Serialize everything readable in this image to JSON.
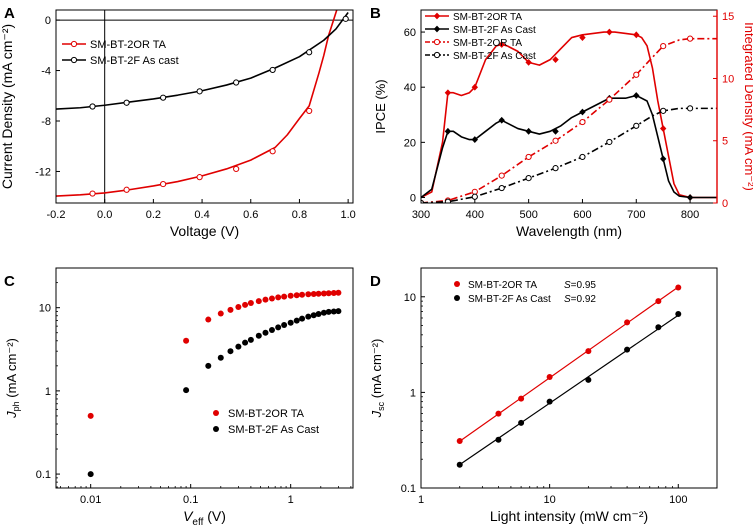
{
  "colors": {
    "red": "#e00000",
    "black": "#000000",
    "axis": "#000000"
  },
  "chart_data": [
    {
      "panel": "A",
      "type": "line",
      "title": "",
      "xlabel": "Voltage (V)",
      "ylabel": "Current Density (mA cm⁻²)",
      "xlim": [
        -0.2,
        1.02
      ],
      "ylim": [
        -14.5,
        0.8
      ],
      "xticks": [
        -0.2,
        0.0,
        0.2,
        0.4,
        0.6,
        0.8,
        1.0
      ],
      "xtick_labels": [
        "-0.2",
        "0.0",
        "0.2",
        "0.4",
        "0.6",
        "0.8",
        "1.0"
      ],
      "yticks": [
        0,
        -4,
        -8,
        -12
      ],
      "ytick_labels": [
        "0",
        "-4",
        "-8",
        "-12"
      ],
      "legend_position": "top-left",
      "series": [
        {
          "name": "SM-BT-2OR TA",
          "color": "red",
          "marker": "circle-open",
          "x": [
            -0.2,
            -0.1,
            0.0,
            0.1,
            0.2,
            0.3,
            0.4,
            0.5,
            0.6,
            0.7,
            0.75,
            0.8,
            0.84,
            0.88,
            0.9,
            0.92,
            0.94,
            0.96
          ],
          "y": [
            -13.95,
            -13.85,
            -13.7,
            -13.45,
            -13.15,
            -12.8,
            -12.35,
            -11.8,
            -11.1,
            -10.1,
            -9.1,
            -7.8,
            -6.8,
            -4.2,
            -2.8,
            -1.2,
            0.0,
            1.2
          ],
          "marker_x": [
            -0.05,
            0.09,
            0.24,
            0.39,
            0.54,
            0.69,
            0.84
          ],
          "marker_y": [
            -13.75,
            -13.45,
            -13.0,
            -12.45,
            -11.8,
            -10.4,
            -7.2
          ]
        },
        {
          "name": "SM-BT-2F As cast",
          "color": "black",
          "marker": "circle-open",
          "x": [
            -0.2,
            -0.1,
            0.0,
            0.1,
            0.2,
            0.3,
            0.4,
            0.5,
            0.6,
            0.7,
            0.8,
            0.9,
            0.95,
            1.0
          ],
          "y": [
            -7.05,
            -6.95,
            -6.75,
            -6.5,
            -6.25,
            -5.95,
            -5.6,
            -5.15,
            -4.6,
            -3.8,
            -2.9,
            -1.6,
            -0.7,
            0.6
          ],
          "marker_x": [
            -0.05,
            0.09,
            0.24,
            0.39,
            0.54,
            0.69,
            0.84,
            0.99
          ],
          "marker_y": [
            -6.85,
            -6.55,
            -6.15,
            -5.65,
            -4.95,
            -3.95,
            -2.55,
            0.1
          ]
        }
      ]
    },
    {
      "panel": "B",
      "type": "line",
      "title": "",
      "xlabel": "Wavelength (nm)",
      "ylabel": "IPCE (%)",
      "y2label": "Integrated Density (mA cm⁻²)",
      "xlim": [
        300,
        850
      ],
      "ylim": [
        -2,
        68
      ],
      "y2lim": [
        0,
        15.5
      ],
      "xticks": [
        300,
        400,
        500,
        600,
        700,
        800
      ],
      "xtick_labels": [
        "300",
        "400",
        "500",
        "600",
        "700",
        "800"
      ],
      "yticks": [
        0,
        20,
        40,
        60
      ],
      "ytick_labels": [
        "0",
        "20",
        "40",
        "60"
      ],
      "y2ticks": [
        0,
        5,
        10,
        15
      ],
      "y2tick_labels": [
        "0",
        "5",
        "10",
        "15"
      ],
      "legend_position": "top-left",
      "series": [
        {
          "name": "SM-BT-2OR TA",
          "color": "red",
          "style": "solid",
          "marker": "diamond-filled",
          "axis": "left",
          "x": [
            300,
            320,
            340,
            350,
            360,
            375,
            390,
            400,
            420,
            440,
            450,
            460,
            480,
            500,
            520,
            540,
            560,
            580,
            600,
            620,
            640,
            650,
            660,
            680,
            700,
            710,
            720,
            730,
            740,
            750,
            760,
            770,
            780,
            800,
            850
          ],
          "y": [
            0,
            2,
            20,
            38,
            38,
            37,
            38,
            40,
            50,
            55,
            55.5,
            55,
            53,
            49,
            48,
            50,
            54,
            58,
            59,
            59.5,
            60,
            60,
            60,
            59.5,
            59,
            58,
            55,
            47,
            35,
            25,
            15,
            5,
            1,
            0,
            0
          ],
          "marker_x": [
            350,
            400,
            450,
            500,
            550,
            600,
            650,
            700,
            750,
            800
          ],
          "marker_y": [
            38,
            40,
            55.5,
            49,
            50,
            58,
            60,
            59,
            25,
            0
          ]
        },
        {
          "name": "SM-BT-2F As Cast",
          "color": "black",
          "style": "solid",
          "marker": "diamond-filled",
          "axis": "left",
          "x": [
            300,
            320,
            340,
            350,
            360,
            375,
            390,
            400,
            420,
            440,
            450,
            460,
            480,
            500,
            520,
            540,
            560,
            580,
            600,
            620,
            640,
            650,
            660,
            680,
            700,
            720,
            730,
            740,
            750,
            760,
            770,
            780,
            800,
            850
          ],
          "y": [
            0,
            3,
            18,
            24,
            24,
            22,
            21,
            21,
            24,
            27,
            28,
            27,
            25,
            24,
            23,
            24,
            26,
            29,
            31,
            33,
            35,
            36,
            36,
            36,
            37,
            35,
            30,
            22,
            14,
            6,
            2,
            0.5,
            0,
            0
          ],
          "marker_x": [
            350,
            400,
            450,
            500,
            550,
            600,
            650,
            700,
            750,
            800
          ],
          "marker_y": [
            24,
            21,
            28,
            24,
            24,
            31,
            36,
            37,
            14,
            0
          ]
        },
        {
          "name": "SM-BT-2OR TA",
          "color": "red",
          "style": "dashdot",
          "marker": "circle-open",
          "axis": "right",
          "x": [
            300,
            350,
            400,
            450,
            500,
            550,
            600,
            650,
            700,
            730,
            750,
            780,
            800,
            850
          ],
          "y": [
            0,
            0.2,
            0.9,
            2.2,
            3.7,
            5.0,
            6.5,
            8.3,
            10.3,
            11.7,
            12.6,
            13.1,
            13.2,
            13.2
          ],
          "marker_x": [
            300,
            350,
            400,
            450,
            500,
            550,
            600,
            650,
            700,
            750,
            800
          ],
          "marker_y": [
            0,
            0.2,
            0.9,
            2.2,
            3.7,
            5.0,
            6.5,
            8.3,
            10.3,
            12.6,
            13.2
          ]
        },
        {
          "name": "SM-BT-2F As Cast",
          "color": "black",
          "style": "dashdot",
          "marker": "circle-open",
          "axis": "right",
          "x": [
            300,
            350,
            400,
            450,
            500,
            550,
            600,
            650,
            700,
            730,
            750,
            780,
            800,
            850
          ],
          "y": [
            0,
            0.1,
            0.5,
            1.2,
            2.0,
            2.8,
            3.7,
            4.9,
            6.2,
            7.0,
            7.4,
            7.6,
            7.6,
            7.6
          ],
          "marker_x": [
            300,
            350,
            400,
            450,
            500,
            550,
            600,
            650,
            700,
            750,
            800
          ],
          "marker_y": [
            0,
            0.1,
            0.5,
            1.2,
            2.0,
            2.8,
            3.7,
            4.9,
            6.2,
            7.4,
            7.6
          ]
        }
      ]
    },
    {
      "panel": "C",
      "type": "scatter",
      "title": "",
      "xlabel": "V_eff (V)",
      "xlabel_main": "V",
      "xlabel_sub": "eff",
      "xlabel_unit": " (V)",
      "ylabel": "J_ph (mA cm⁻²)",
      "ylabel_main": "J",
      "ylabel_sub": "ph",
      "ylabel_unit": " (mA cm⁻²)",
      "xscale": "log",
      "yscale": "log",
      "xlim": [
        0.0045,
        4.2
      ],
      "ylim": [
        0.068,
        30
      ],
      "xticks": [
        0.01,
        0.1,
        1
      ],
      "xtick_labels": [
        "0.01",
        "0.1",
        "1"
      ],
      "yticks": [
        0.1,
        1,
        10
      ],
      "ytick_labels": [
        "0.1",
        "1",
        "10"
      ],
      "legend_position": "bottom-right",
      "series": [
        {
          "name": "SM-BT-2OR TA",
          "color": "red",
          "marker": "circle-filled",
          "x": [
            0.01,
            0.09,
            0.15,
            0.2,
            0.25,
            0.3,
            0.35,
            0.4,
            0.48,
            0.56,
            0.65,
            0.75,
            0.86,
            1.0,
            1.15,
            1.3,
            1.5,
            1.7,
            1.9,
            2.15,
            2.4,
            2.7,
            3.0
          ],
          "y": [
            0.5,
            4.0,
            7.2,
            8.5,
            9.4,
            10.2,
            10.8,
            11.4,
            12.0,
            12.5,
            12.9,
            13.3,
            13.6,
            13.9,
            14.1,
            14.3,
            14.5,
            14.6,
            14.7,
            14.8,
            14.9,
            15.0,
            15.1
          ]
        },
        {
          "name": "SM-BT-2F As Cast",
          "color": "black",
          "marker": "circle-filled",
          "x": [
            0.01,
            0.09,
            0.15,
            0.2,
            0.25,
            0.3,
            0.35,
            0.4,
            0.48,
            0.56,
            0.65,
            0.75,
            0.86,
            1.0,
            1.15,
            1.3,
            1.5,
            1.7,
            1.9,
            2.15,
            2.4,
            2.7,
            3.0
          ],
          "y": [
            0.1,
            1.02,
            2.0,
            2.5,
            3.0,
            3.4,
            3.8,
            4.1,
            4.6,
            5.0,
            5.4,
            5.8,
            6.2,
            6.6,
            7.0,
            7.4,
            7.8,
            8.1,
            8.4,
            8.7,
            8.9,
            9.0,
            9.1
          ]
        }
      ]
    },
    {
      "panel": "D",
      "type": "scatter",
      "title": "",
      "xlabel": "Light intensity (mW cm⁻²)",
      "ylabel": "J_sc (mA cm⁻²)",
      "ylabel_main": "J",
      "ylabel_sub": "sc",
      "ylabel_unit": " (mA cm⁻²)",
      "xscale": "log",
      "yscale": "log",
      "xlim": [
        1,
        200
      ],
      "ylim": [
        0.1,
        20
      ],
      "xticks": [
        1,
        10,
        100
      ],
      "xtick_labels": [
        "1",
        "10",
        "100"
      ],
      "yticks": [
        0.1,
        1,
        10
      ],
      "ytick_labels": [
        "0.1",
        "1",
        "10"
      ],
      "legend_position": "top-left",
      "series": [
        {
          "name": "SM-BT-2OR TA",
          "color": "red",
          "marker": "circle-filled",
          "fit": "line",
          "slope_label": "S=0.95",
          "slope_letter": "S",
          "slope_value": "=0.95",
          "slope": 0.95,
          "x": [
            2,
            4,
            6,
            10,
            20,
            40,
            70,
            100
          ],
          "y": [
            0.31,
            0.6,
            0.86,
            1.45,
            2.7,
            5.4,
            9.0,
            12.5
          ]
        },
        {
          "name": "SM-BT-2F As Cast",
          "color": "black",
          "marker": "circle-filled",
          "fit": "line",
          "slope_label": "S=0.92",
          "slope_letter": "S",
          "slope_value": "=0.92",
          "slope": 0.92,
          "x": [
            2,
            4,
            6,
            10,
            20,
            40,
            70,
            100
          ],
          "y": [
            0.175,
            0.32,
            0.48,
            0.8,
            1.35,
            2.8,
            4.8,
            6.6
          ]
        }
      ]
    }
  ]
}
